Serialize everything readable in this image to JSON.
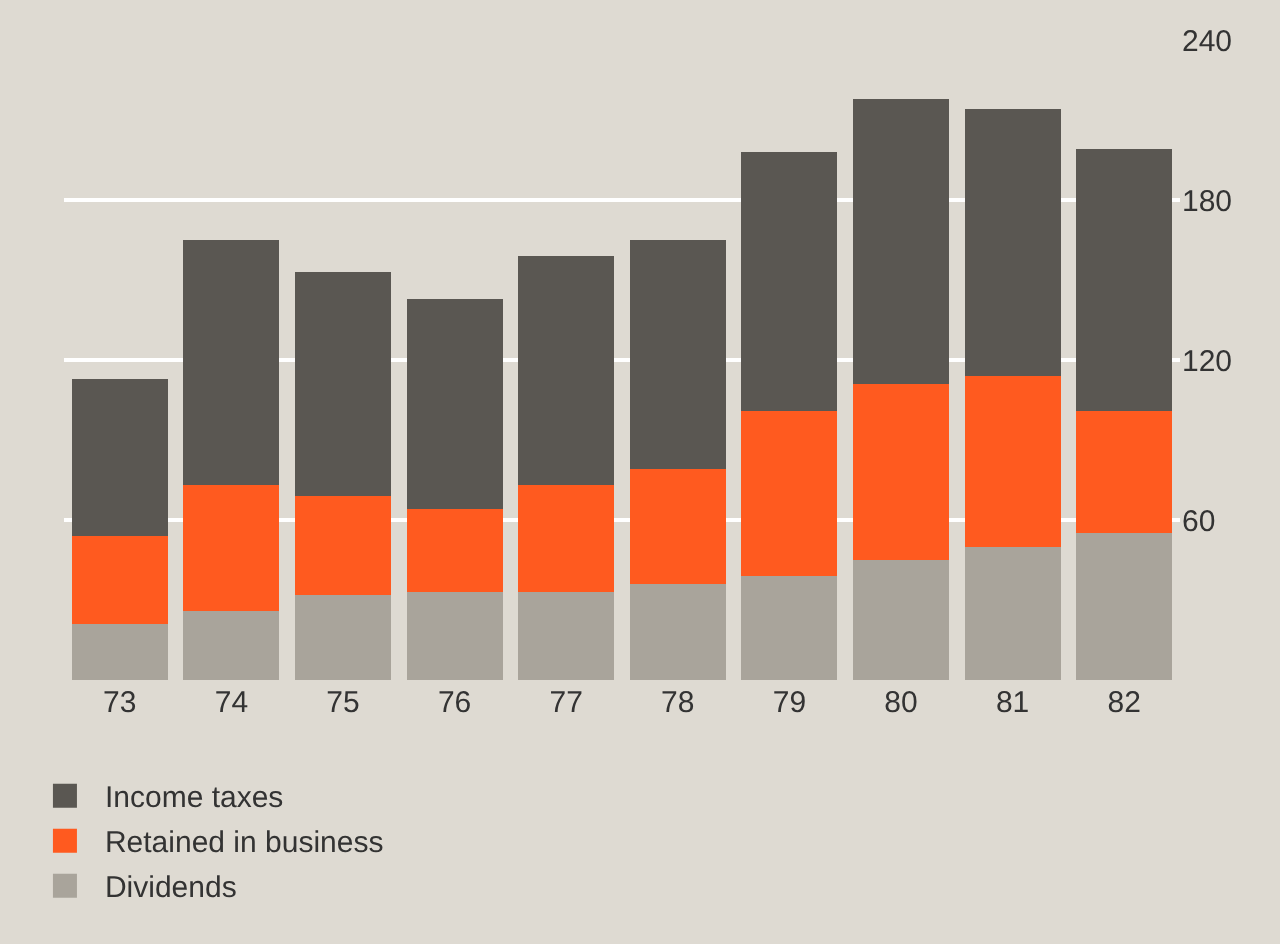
{
  "chart_data": {
    "type": "bar",
    "stacked": true,
    "categories": [
      "73",
      "74",
      "75",
      "76",
      "77",
      "78",
      "79",
      "80",
      "81",
      "82"
    ],
    "series": [
      {
        "name": "Dividends",
        "color": "#a9a49b",
        "values": [
          21,
          26,
          32,
          33,
          33,
          36,
          39,
          45,
          50,
          55
        ]
      },
      {
        "name": "Retained in business",
        "color": "#ff5a1f",
        "values": [
          33,
          47,
          37,
          31,
          40,
          43,
          62,
          66,
          64,
          46
        ]
      },
      {
        "name": "Income taxes",
        "color": "#5a5752",
        "values": [
          59,
          92,
          84,
          79,
          86,
          86,
          97,
          107,
          100,
          98
        ]
      }
    ],
    "ylim": [
      0,
      240
    ],
    "yticks": [
      60,
      120,
      180,
      240
    ],
    "grid": "y",
    "legend": "bottom left"
  }
}
